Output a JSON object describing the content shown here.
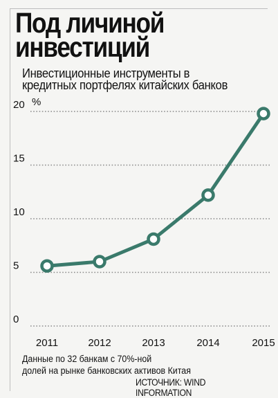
{
  "chart_data": {
    "type": "line",
    "title": "Под личиной инвестиций",
    "subtitle": "Инвестиционные инструменты в кредитных портфелях китайских банков",
    "ylabel": "%",
    "x": [
      "2011",
      "2012",
      "2013",
      "2014",
      "2015"
    ],
    "y_ticks": [
      "20",
      "15",
      "10",
      "5",
      "0"
    ],
    "ylim": [
      0,
      20
    ],
    "grid": true,
    "series": [
      {
        "values": [
          5.6,
          6.0,
          8.1,
          12.2,
          19.8
        ]
      }
    ],
    "line_color": "#3a7a6b",
    "marker_fill": "#ffffff"
  },
  "footnote": {
    "line1": "Данные по 32 банкам с 70%-ной",
    "line2": "долей на рынке банковских активов Китая"
  },
  "source": "ИСТОЧНИК: WIND INFORMATION"
}
